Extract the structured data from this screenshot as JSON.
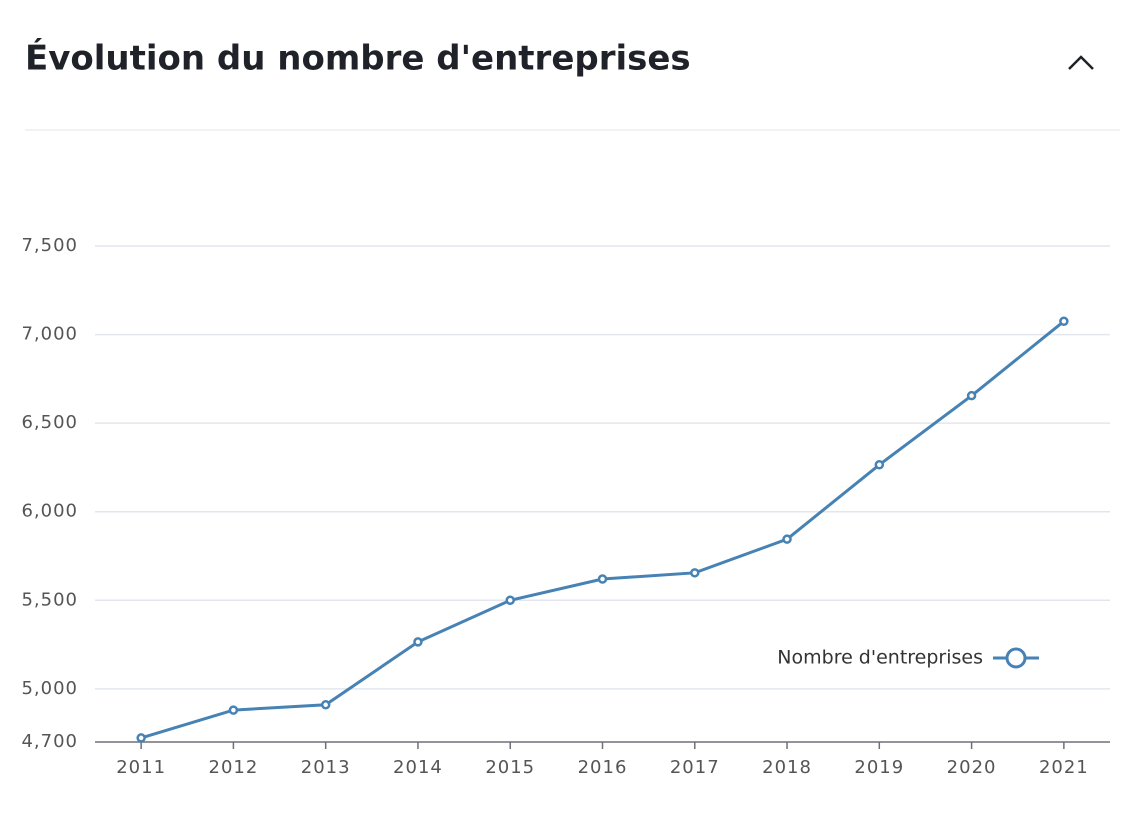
{
  "header": {
    "title": "Évolution du nombre d'entreprises"
  },
  "chart_data": {
    "type": "line",
    "categories": [
      "2011",
      "2012",
      "2013",
      "2014",
      "2015",
      "2016",
      "2017",
      "2018",
      "2019",
      "2020",
      "2021"
    ],
    "series": [
      {
        "name": "Nombre d'entreprises",
        "color": "#4682b4",
        "values": [
          4723,
          4880,
          4910,
          5265,
          5500,
          5620,
          5655,
          5845,
          6265,
          6655,
          7075
        ]
      }
    ],
    "ylim": [
      4700,
      7500
    ],
    "yticks": [
      {
        "value": 4700,
        "label": "4,700"
      },
      {
        "value": 5000,
        "label": "5,000"
      },
      {
        "value": 5500,
        "label": "5,500"
      },
      {
        "value": 6000,
        "label": "6,000"
      },
      {
        "value": 6500,
        "label": "6,500"
      },
      {
        "value": 7000,
        "label": "7,000"
      },
      {
        "value": 7500,
        "label": "7,500"
      }
    ],
    "grid": true,
    "legend": "right"
  }
}
